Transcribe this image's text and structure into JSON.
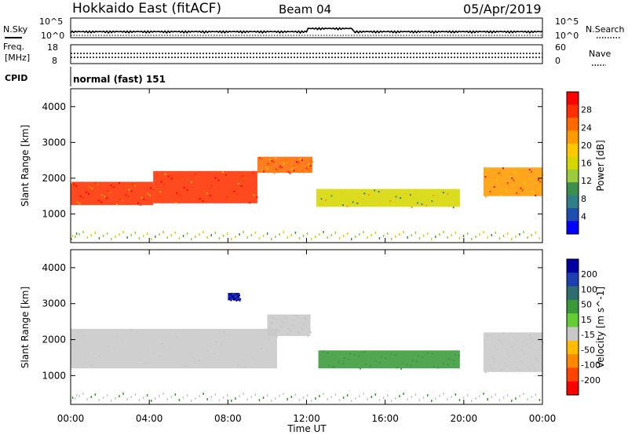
{
  "header": {
    "station": "Hokkaido East (fitACF)",
    "beam": "Beam 04",
    "date": "05/Apr/2019"
  },
  "noise_panel": {
    "left_label": "N.Sky",
    "right_label": "N.Search",
    "ticks": [
      "10^5",
      "10^0"
    ]
  },
  "freq_panel": {
    "left_label_1": "Freq.",
    "left_label_2": "[MHz]",
    "left_ticks": [
      "18",
      "8"
    ],
    "right_label": "Nave",
    "right_ticks": [
      "60",
      "0"
    ]
  },
  "cpid_panel": {
    "label": "CPID",
    "mode": "normal (fast) 151"
  },
  "x_axis": {
    "title": "Time UT",
    "ticks": [
      "00:00",
      "04:00",
      "08:00",
      "12:00",
      "16:00",
      "20:00",
      "00:00"
    ]
  },
  "power_scale": {
    "title": "Power [dB]",
    "ticks": [
      "28",
      "24",
      "20",
      "16",
      "12",
      "8",
      "4"
    ],
    "colors": [
      "#ff0000",
      "#ff3000",
      "#ff6a00",
      "#ff9a00",
      "#ffc800",
      "#d6d600",
      "#9bcc3b",
      "#3c8f4c",
      "#2f7f86",
      "#1f4fae",
      "#0000ff"
    ]
  },
  "velocity_scale": {
    "title": "Velocity [m s^-1]",
    "ticks": [
      "200",
      "100",
      "50",
      "15",
      "-15",
      "-50",
      "-100",
      "-200"
    ],
    "colors": [
      "#0000a0",
      "#1f3fb0",
      "#2e6e6e",
      "#3a9a3a",
      "#66cc33",
      "#c8c8c8",
      "#ffbb00",
      "#ff8800",
      "#ff4400",
      "#ff0000"
    ]
  },
  "chart_data": [
    {
      "type": "heatmap",
      "ylabel": "Slant Range [km]",
      "xlabel": "",
      "y_ticks": [
        1000,
        2000,
        3000,
        4000
      ],
      "ylim": [
        200,
        4500
      ],
      "xlim_hours": [
        0,
        24
      ],
      "colorbar": "Power [dB]",
      "regions": [
        {
          "t0": 0.0,
          "t1": 4.2,
          "r0": 1250,
          "r1": 1900,
          "value": 26
        },
        {
          "t0": 4.2,
          "t1": 9.5,
          "r0": 1300,
          "r1": 2200,
          "value": 27
        },
        {
          "t0": 9.5,
          "t1": 12.3,
          "r0": 2150,
          "r1": 2600,
          "value": 24
        },
        {
          "t0": 12.5,
          "t1": 19.8,
          "r0": 1200,
          "r1": 1700,
          "value": 14
        },
        {
          "t0": 21.0,
          "t1": 24.0,
          "r0": 1500,
          "r1": 2300,
          "value": 22
        }
      ]
    },
    {
      "type": "heatmap",
      "ylabel": "Slant Range [km]",
      "xlabel": "Time UT",
      "y_ticks": [
        1000,
        2000,
        3000,
        4000
      ],
      "ylim": [
        200,
        4500
      ],
      "xlim_hours": [
        0,
        24
      ],
      "colorbar": "Velocity [m s^-1]",
      "regions": [
        {
          "t0": 0.0,
          "t1": 10.5,
          "r0": 1200,
          "r1": 2300,
          "value": 0
        },
        {
          "t0": 10.0,
          "t1": 12.2,
          "r0": 2100,
          "r1": 2700,
          "value": 0
        },
        {
          "t0": 12.6,
          "t1": 19.8,
          "r0": 1200,
          "r1": 1700,
          "value": 30
        },
        {
          "t0": 8.0,
          "t1": 8.6,
          "r0": 3100,
          "r1": 3300,
          "value": 200
        },
        {
          "t0": 21.0,
          "t1": 24.0,
          "r0": 1100,
          "r1": 2200,
          "value": 0
        }
      ]
    }
  ]
}
